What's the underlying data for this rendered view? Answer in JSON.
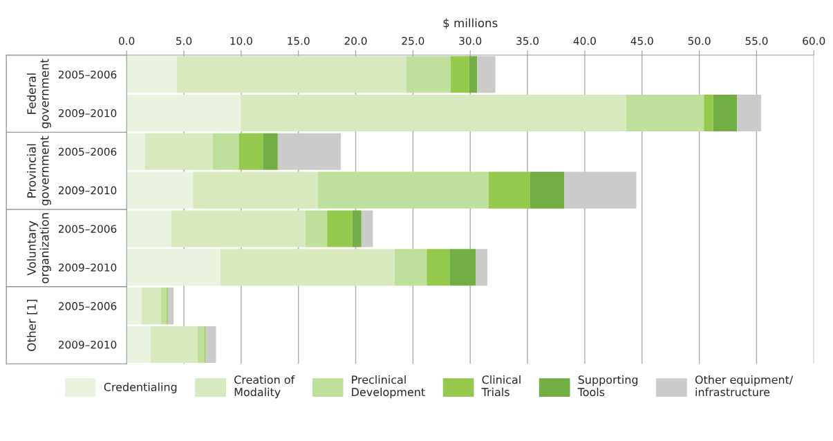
{
  "chart_data": {
    "type": "bar",
    "orientation": "horizontal",
    "stacked": true,
    "xlabel": "$ millions",
    "categories": [
      "2005–2006",
      "2009–2010",
      "2005–2006",
      "2009–2010",
      "2005–2006",
      "2009–2010",
      "2005–2006",
      "2009–2010"
    ],
    "annotations": [
      "Federal\ngovernment",
      "Provincial\ngovernment",
      "Voluntary\norganization",
      "Other [1]"
    ],
    "series": [
      {
        "name": "Credentialing",
        "color": "#eaf3df",
        "values": [
          4.4,
          10.0,
          1.6,
          5.8,
          3.9,
          8.2,
          1.3,
          2.1
        ]
      },
      {
        "name": "Creation of\nModality",
        "color": "#d7e9bd",
        "values": [
          20.0,
          33.6,
          5.9,
          10.9,
          11.7,
          15.2,
          1.7,
          4.1
        ]
      },
      {
        "name": "Preclinical\nDevelopment",
        "color": "#bfdf9b",
        "values": [
          3.9,
          6.8,
          2.3,
          14.9,
          1.9,
          2.8,
          0.5,
          0.6
        ]
      },
      {
        "name": "Clinical\nTrials",
        "color": "#95c94d",
        "values": [
          1.6,
          0.8,
          2.1,
          3.6,
          2.2,
          2.0,
          0.1,
          0.1
        ]
      },
      {
        "name": "Supporting\nTools",
        "color": "#71ae44",
        "values": [
          0.7,
          2.1,
          1.3,
          3.0,
          0.8,
          2.3,
          0.0,
          0.0
        ]
      },
      {
        "name": "Other equipment/\ninfrastructure",
        "color": "#cbcbca",
        "values": [
          1.6,
          2.1,
          5.5,
          6.3,
          1.0,
          1.0,
          0.5,
          0.9
        ]
      }
    ],
    "xlim": [
      0,
      60
    ],
    "xticks": [
      {
        "value": 0,
        "label": "0.0"
      },
      {
        "value": 5,
        "label": "5.0"
      },
      {
        "value": 10,
        "label": "10.0"
      },
      {
        "value": 15,
        "label": "15.0"
      },
      {
        "value": 20,
        "label": "20.0"
      },
      {
        "value": 25,
        "label": "25.0"
      },
      {
        "value": 30,
        "label": "30.0"
      },
      {
        "value": 35,
        "label": "35.0"
      },
      {
        "value": 40,
        "label": "40.0"
      },
      {
        "value": 45,
        "label": "45.0"
      },
      {
        "value": 50,
        "label": "50.0"
      },
      {
        "value": 55,
        "label": "55.0"
      },
      {
        "value": 60,
        "label": "60.0"
      }
    ],
    "grid": "x",
    "legend": "bottom"
  }
}
